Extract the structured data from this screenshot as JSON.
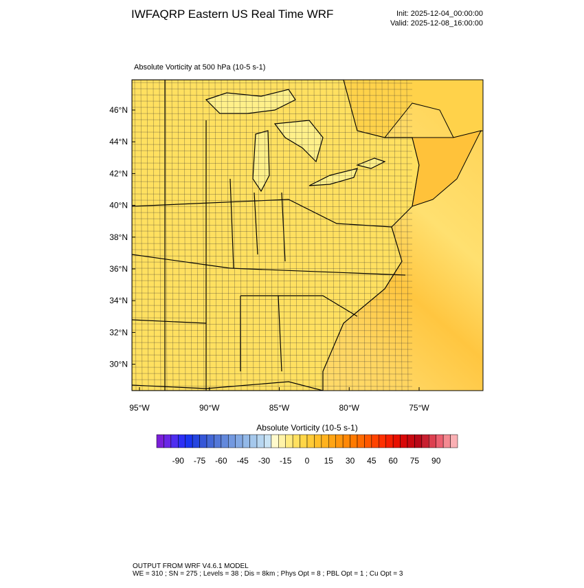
{
  "header": {
    "title": "IWFAQRP Eastern US Real Time WRF",
    "init": "Init: 2025-12-04_00:00:00",
    "valid": "Valid: 2025-12-08_16:00:00"
  },
  "map": {
    "subtitle": "Absolute Vorticity at 500 hPa   (10-5 s-1)",
    "lat_ticks": [
      {
        "value": 46,
        "label": "46°N"
      },
      {
        "value": 44,
        "label": "44°N"
      },
      {
        "value": 42,
        "label": "42°N"
      },
      {
        "value": 40,
        "label": "40°N"
      },
      {
        "value": 38,
        "label": "38°N"
      },
      {
        "value": 36,
        "label": "36°N"
      },
      {
        "value": 34,
        "label": "34°N"
      },
      {
        "value": 32,
        "label": "32°N"
      },
      {
        "value": 30,
        "label": "30°N"
      }
    ],
    "lon_ticks": [
      {
        "value": -95,
        "label": "95°W"
      },
      {
        "value": -90,
        "label": "90°W"
      },
      {
        "value": -85,
        "label": "85°W"
      },
      {
        "value": -80,
        "label": "80°W"
      },
      {
        "value": -75,
        "label": "75°W"
      }
    ]
  },
  "colorbar": {
    "title": "Absolute Vorticity  (10-5 s-1)",
    "range": [
      -105,
      105
    ],
    "ticks": [
      -90,
      -75,
      -60,
      -45,
      -30,
      -15,
      0,
      15,
      30,
      45,
      60,
      75,
      90
    ],
    "colors": [
      "#7a1fd8",
      "#6a26e6",
      "#4e2ef0",
      "#2c2ff5",
      "#1a35f0",
      "#2545e0",
      "#3556d8",
      "#4468d6",
      "#5478d8",
      "#6389dc",
      "#7399e0",
      "#83a9e4",
      "#93b9e8",
      "#a5c8ec",
      "#b7d6f0",
      "#c9e3f4",
      "#fffacd",
      "#fff3a8",
      "#ffeb80",
      "#ffe060",
      "#ffd648",
      "#ffcb38",
      "#ffbf2a",
      "#ffb21e",
      "#ffa414",
      "#ff960c",
      "#ff8806",
      "#ff7a00",
      "#ff6a00",
      "#ff5800",
      "#ff4400",
      "#ff3000",
      "#f51e00",
      "#e81000",
      "#d80808",
      "#c80810",
      "#b80818",
      "#c82030",
      "#dc4050",
      "#ec6070",
      "#f48a92",
      "#fab0b4"
    ]
  },
  "footer": {
    "line1": "OUTPUT FROM WRF V4.6.1 MODEL",
    "line2": "WE = 310 ; SN = 275 ; Levels = 38 ; Dis = 8km ; Phys Opt = 8 ; PBL Opt = 1 ; Cu Opt = 3"
  }
}
